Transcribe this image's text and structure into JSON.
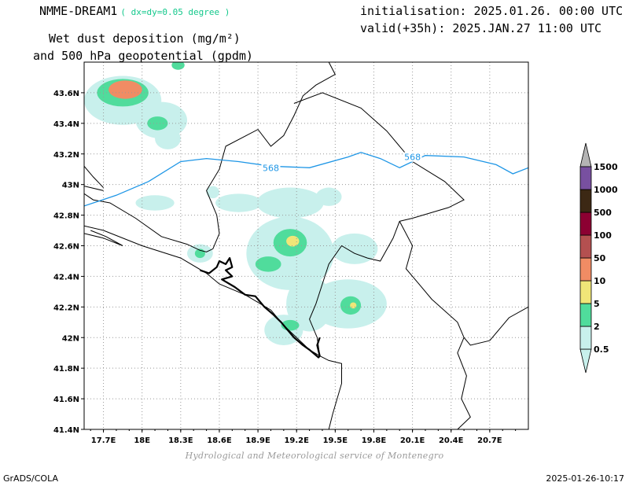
{
  "header": {
    "model": "NMME-DREAM1",
    "resolution": "( dx=dy=0.05 degree )",
    "field_line1": "Wet dust deposition (mg/m²)",
    "field_line2": "and 500 hPa geopotential (gpdm)",
    "init": "initialisation: 2025.01.26. 00:00 UTC",
    "valid": "valid(+35h): 2025.JAN.27 11:00 UTC"
  },
  "footer": {
    "credit": "Hydrological and Meteorological service of Montenegro",
    "software": "GrADS/COLA",
    "timestamp": "2025-01-26-10:17"
  },
  "map": {
    "lon_range": [
      17.55,
      21.0
    ],
    "lat_range": [
      41.4,
      43.8
    ],
    "lon_ticks": [
      {
        "v": 17.7,
        "label": "17.7E"
      },
      {
        "v": 18.0,
        "label": "18E"
      },
      {
        "v": 18.3,
        "label": "18.3E"
      },
      {
        "v": 18.6,
        "label": "18.6E"
      },
      {
        "v": 18.9,
        "label": "18.9E"
      },
      {
        "v": 19.2,
        "label": "19.2E"
      },
      {
        "v": 19.5,
        "label": "19.5E"
      },
      {
        "v": 19.8,
        "label": "19.8E"
      },
      {
        "v": 20.1,
        "label": "20.1E"
      },
      {
        "v": 20.4,
        "label": "20.4E"
      },
      {
        "v": 20.7,
        "label": "20.7E"
      }
    ],
    "lat_ticks": [
      {
        "v": 41.4,
        "label": "41.4N"
      },
      {
        "v": 41.6,
        "label": "41.6N"
      },
      {
        "v": 41.8,
        "label": "41.8N"
      },
      {
        "v": 42.0,
        "label": "42N"
      },
      {
        "v": 42.2,
        "label": "42.2N"
      },
      {
        "v": 42.4,
        "label": "42.4N"
      },
      {
        "v": 42.6,
        "label": "42.6N"
      },
      {
        "v": 42.8,
        "label": "42.8N"
      },
      {
        "v": 43.0,
        "label": "43N"
      },
      {
        "v": 43.2,
        "label": "43.2N"
      },
      {
        "v": 43.4,
        "label": "43.4N"
      },
      {
        "v": 43.6,
        "label": "43.6N"
      }
    ],
    "grid": true,
    "geopotential_contour": {
      "value": "568",
      "color": "#1e96e6",
      "label_positions": [
        [
          19.0,
          43.11
        ],
        [
          20.1,
          43.18
        ]
      ],
      "points": [
        [
          17.55,
          42.86
        ],
        [
          17.8,
          42.93
        ],
        [
          18.05,
          43.02
        ],
        [
          18.3,
          43.15
        ],
        [
          18.5,
          43.17
        ],
        [
          18.75,
          43.15
        ],
        [
          19.0,
          43.12
        ],
        [
          19.3,
          43.11
        ],
        [
          19.6,
          43.18
        ],
        [
          19.7,
          43.21
        ],
        [
          19.85,
          43.17
        ],
        [
          20.0,
          43.11
        ],
        [
          20.2,
          43.19
        ],
        [
          20.5,
          43.18
        ],
        [
          20.75,
          43.13
        ],
        [
          20.88,
          43.07
        ],
        [
          21.0,
          43.11
        ]
      ]
    },
    "borders": [
      [
        [
          17.55,
          42.94
        ],
        [
          17.62,
          42.9
        ],
        [
          17.75,
          42.88
        ],
        [
          17.95,
          42.78
        ],
        [
          18.15,
          42.66
        ],
        [
          18.35,
          42.61
        ],
        [
          18.45,
          42.57
        ],
        [
          18.5,
          42.56
        ],
        [
          18.55,
          42.58
        ],
        [
          18.6,
          42.68
        ],
        [
          18.58,
          42.8
        ],
        [
          18.5,
          42.96
        ],
        [
          18.6,
          43.1
        ],
        [
          18.65,
          43.25
        ],
        [
          18.9,
          43.36
        ],
        [
          19.0,
          43.25
        ],
        [
          19.1,
          43.32
        ],
        [
          19.18,
          43.45
        ],
        [
          19.25,
          43.58
        ],
        [
          19.35,
          43.65
        ],
        [
          19.5,
          43.72
        ],
        [
          19.45,
          43.8
        ]
      ],
      [
        [
          19.18,
          43.53
        ],
        [
          19.4,
          43.6
        ],
        [
          19.7,
          43.5
        ],
        [
          19.9,
          43.35
        ],
        [
          20.1,
          43.15
        ],
        [
          20.35,
          43.02
        ],
        [
          20.5,
          42.9
        ],
        [
          20.38,
          42.85
        ],
        [
          20.1,
          42.78
        ],
        [
          20.0,
          42.76
        ],
        [
          19.95,
          42.65
        ],
        [
          19.85,
          42.5
        ],
        [
          19.75,
          42.52
        ],
        [
          19.65,
          42.55
        ],
        [
          19.55,
          42.6
        ],
        [
          19.45,
          42.48
        ],
        [
          19.4,
          42.35
        ],
        [
          19.35,
          42.22
        ],
        [
          19.3,
          42.12
        ],
        [
          19.36,
          42.0
        ],
        [
          19.38,
          41.88
        ]
      ],
      [
        [
          20.0,
          42.76
        ],
        [
          20.1,
          42.6
        ],
        [
          20.05,
          42.45
        ],
        [
          20.15,
          42.35
        ],
        [
          20.25,
          42.25
        ],
        [
          20.45,
          42.1
        ],
        [
          20.5,
          42.0
        ],
        [
          20.45,
          41.9
        ],
        [
          20.52,
          41.75
        ],
        [
          20.48,
          41.6
        ],
        [
          20.55,
          41.48
        ],
        [
          20.45,
          41.4
        ]
      ],
      [
        [
          20.5,
          42.0
        ],
        [
          20.55,
          41.95
        ],
        [
          20.7,
          41.98
        ],
        [
          20.85,
          42.13
        ],
        [
          21.0,
          42.2
        ]
      ],
      [
        [
          19.38,
          41.88
        ],
        [
          19.45,
          41.85
        ],
        [
          19.55,
          41.83
        ],
        [
          19.55,
          41.7
        ],
        [
          19.48,
          41.5
        ],
        [
          19.45,
          41.4
        ]
      ],
      [
        [
          17.55,
          42.73
        ],
        [
          17.7,
          42.7
        ],
        [
          18.0,
          42.6
        ],
        [
          18.3,
          42.52
        ],
        [
          18.5,
          42.42
        ],
        [
          18.6,
          42.35
        ],
        [
          18.8,
          42.28
        ],
        [
          19.0,
          42.18
        ],
        [
          19.1,
          42.08
        ],
        [
          19.2,
          42.0
        ],
        [
          19.3,
          41.92
        ],
        [
          19.38,
          41.88
        ]
      ],
      [
        [
          17.55,
          42.68
        ],
        [
          17.7,
          42.65
        ],
        [
          17.85,
          42.6
        ],
        [
          17.72,
          42.66
        ],
        [
          17.6,
          42.7
        ]
      ],
      [
        [
          17.55,
          42.99
        ],
        [
          17.7,
          42.96
        ]
      ],
      [
        [
          17.55,
          43.12
        ],
        [
          17.62,
          43.05
        ],
        [
          17.7,
          42.98
        ]
      ]
    ],
    "coast_bold": [
      [
        18.45,
        42.44
      ],
      [
        18.52,
        42.42
      ],
      [
        18.58,
        42.46
      ],
      [
        18.6,
        42.5
      ],
      [
        18.65,
        42.48
      ],
      [
        18.68,
        42.52
      ],
      [
        18.7,
        42.46
      ],
      [
        18.65,
        42.44
      ],
      [
        18.7,
        42.4
      ],
      [
        18.62,
        42.38
      ],
      [
        18.72,
        42.33
      ],
      [
        18.8,
        42.28
      ],
      [
        18.88,
        42.27
      ],
      [
        18.95,
        42.2
      ],
      [
        19.02,
        42.15
      ],
      [
        19.08,
        42.1
      ],
      [
        19.12,
        42.06
      ],
      [
        19.18,
        42.0
      ],
      [
        19.25,
        41.95
      ],
      [
        19.3,
        41.92
      ],
      [
        19.37,
        41.87
      ],
      [
        19.38,
        41.88
      ],
      [
        19.36,
        41.95
      ],
      [
        19.38,
        42.0
      ]
    ],
    "dust_blobs": [
      {
        "level": 0,
        "lon": 17.85,
        "lat": 43.55,
        "rx": 0.3,
        "ry": 0.16
      },
      {
        "level": 0,
        "lon": 18.15,
        "lat": 43.42,
        "rx": 0.2,
        "ry": 0.12
      },
      {
        "level": 0,
        "lon": 18.2,
        "lat": 43.3,
        "rx": 0.1,
        "ry": 0.07
      },
      {
        "level": 0,
        "lon": 19.15,
        "lat": 42.55,
        "rx": 0.34,
        "ry": 0.24
      },
      {
        "level": 0,
        "lon": 19.15,
        "lat": 42.88,
        "rx": 0.26,
        "ry": 0.1
      },
      {
        "level": 0,
        "lon": 18.75,
        "lat": 42.88,
        "rx": 0.18,
        "ry": 0.06
      },
      {
        "level": 0,
        "lon": 19.6,
        "lat": 42.22,
        "rx": 0.3,
        "ry": 0.16
      },
      {
        "level": 0,
        "lon": 19.3,
        "lat": 42.22,
        "rx": 0.18,
        "ry": 0.18
      },
      {
        "level": 0,
        "lon": 19.65,
        "lat": 42.58,
        "rx": 0.18,
        "ry": 0.1
      },
      {
        "level": 0,
        "lon": 19.1,
        "lat": 42.05,
        "rx": 0.15,
        "ry": 0.1
      },
      {
        "level": 0,
        "lon": 18.45,
        "lat": 42.55,
        "rx": 0.1,
        "ry": 0.06
      },
      {
        "level": 0,
        "lon": 18.1,
        "lat": 42.88,
        "rx": 0.15,
        "ry": 0.05
      },
      {
        "level": 0,
        "lon": 18.55,
        "lat": 42.95,
        "rx": 0.05,
        "ry": 0.04
      },
      {
        "level": 0,
        "lon": 19.45,
        "lat": 42.92,
        "rx": 0.1,
        "ry": 0.06
      },
      {
        "level": 1,
        "lon": 17.85,
        "lat": 43.6,
        "rx": 0.2,
        "ry": 0.09
      },
      {
        "level": 1,
        "lon": 18.12,
        "lat": 43.4,
        "rx": 0.08,
        "ry": 0.045
      },
      {
        "level": 1,
        "lon": 19.15,
        "lat": 42.62,
        "rx": 0.13,
        "ry": 0.09
      },
      {
        "level": 1,
        "lon": 18.98,
        "lat": 42.48,
        "rx": 0.1,
        "ry": 0.05
      },
      {
        "level": 1,
        "lon": 19.62,
        "lat": 42.21,
        "rx": 0.08,
        "ry": 0.06
      },
      {
        "level": 1,
        "lon": 19.15,
        "lat": 42.08,
        "rx": 0.07,
        "ry": 0.035
      },
      {
        "level": 1,
        "lon": 18.45,
        "lat": 42.55,
        "rx": 0.04,
        "ry": 0.03
      },
      {
        "level": 1,
        "lon": 18.28,
        "lat": 43.78,
        "rx": 0.05,
        "ry": 0.03
      },
      {
        "level": 2,
        "lon": 17.82,
        "lat": 43.61,
        "rx": 0.06,
        "ry": 0.04
      },
      {
        "level": 2,
        "lon": 19.17,
        "lat": 42.63,
        "rx": 0.05,
        "ry": 0.035
      },
      {
        "level": 2,
        "lon": 19.64,
        "lat": 42.21,
        "rx": 0.025,
        "ry": 0.02
      },
      {
        "level": 3,
        "lon": 17.87,
        "lat": 43.62,
        "rx": 0.13,
        "ry": 0.06
      }
    ]
  },
  "colorbar": {
    "colors": [
      "#c8f0ec",
      "#50dc9c",
      "#f0e678",
      "#f08c64",
      "#b45050",
      "#8c0032",
      "#3c2814",
      "#7850a0",
      "#b4b4b4"
    ],
    "labels": [
      "0.5",
      "2",
      "5",
      "10",
      "50",
      "100",
      "500",
      "1000",
      "1500"
    ]
  }
}
